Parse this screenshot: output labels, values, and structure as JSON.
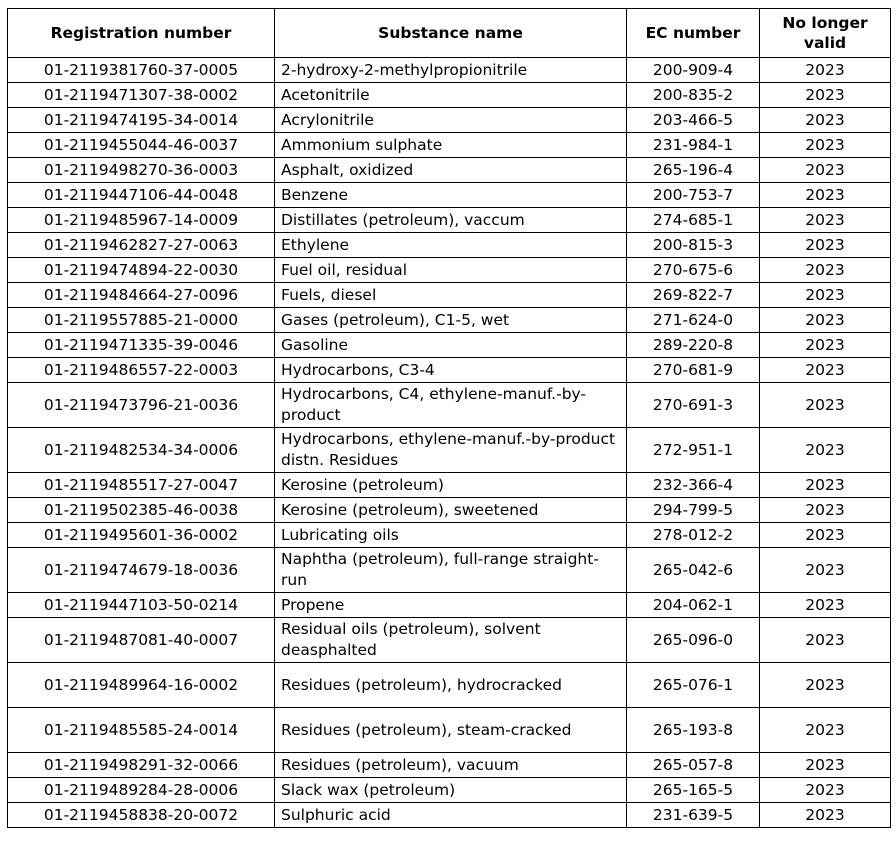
{
  "table": {
    "headers": [
      "Registration number",
      "Substance name",
      "EC number",
      "No longer valid"
    ],
    "rows": [
      {
        "reg": "01-2119381760-37-0005",
        "name": "2-hydroxy-2-methylpropionitrile",
        "ec": "200-909-4",
        "year": "2023"
      },
      {
        "reg": "01-2119471307-38-0002",
        "name": "Acetonitrile",
        "ec": "200-835-2",
        "year": "2023"
      },
      {
        "reg": "01-2119474195-34-0014",
        "name": "Acrylonitrile",
        "ec": "203-466-5",
        "year": "2023"
      },
      {
        "reg": "01-2119455044-46-0037",
        "name": "Ammonium sulphate",
        "ec": "231-984-1",
        "year": "2023"
      },
      {
        "reg": "01-2119498270-36-0003",
        "name": "Asphalt, oxidized",
        "ec": "265-196-4",
        "year": "2023"
      },
      {
        "reg": "01-2119447106-44-0048",
        "name": "Benzene",
        "ec": "200-753-7",
        "year": "2023"
      },
      {
        "reg": "01-2119485967-14-0009",
        "name": "Distillates (petroleum), vaccum",
        "ec": "274-685-1",
        "year": "2023"
      },
      {
        "reg": "01-2119462827-27-0063",
        "name": "Ethylene",
        "ec": "200-815-3",
        "year": "2023"
      },
      {
        "reg": "01-2119474894-22-0030",
        "name": "Fuel oil, residual",
        "ec": "270-675-6",
        "year": "2023"
      },
      {
        "reg": "01-2119484664-27-0096",
        "name": "Fuels, diesel",
        "ec": "269-822-7",
        "year": "2023"
      },
      {
        "reg": "01-2119557885-21-0000",
        "name": "Gases (petroleum), C1-5, wet",
        "ec": "271-624-0",
        "year": "2023"
      },
      {
        "reg": "01-2119471335-39-0046",
        "name": "Gasoline",
        "ec": "289-220-8",
        "year": "2023"
      },
      {
        "reg": "01-2119486557-22-0003",
        "name": "Hydrocarbons, C3-4",
        "ec": "270-681-9",
        "year": "2023"
      },
      {
        "reg": "01-2119473796-21-0036",
        "name": "Hydrocarbons, C4, ethylene-manuf.-by-product",
        "ec": "270-691-3",
        "year": "2023"
      },
      {
        "reg": "01-2119482534-34-0006",
        "name": "Hydrocarbons, ethylene-manuf.-by-product distn. Residues",
        "ec": "272-951-1",
        "year": "2023"
      },
      {
        "reg": "01-2119485517-27-0047",
        "name": "Kerosine (petroleum)",
        "ec": "232-366-4",
        "year": "2023"
      },
      {
        "reg": "01-2119502385-46-0038",
        "name": "Kerosine (petroleum), sweetened",
        "ec": "294-799-5",
        "year": "2023"
      },
      {
        "reg": "01-2119495601-36-0002",
        "name": "Lubricating oils",
        "ec": "278-012-2",
        "year": "2023"
      },
      {
        "reg": "01-2119474679-18-0036",
        "name": "Naphtha (petroleum), full-range straight-run",
        "ec": "265-042-6",
        "year": "2023"
      },
      {
        "reg": "01-2119447103-50-0214",
        "name": "Propene",
        "ec": "204-062-1",
        "year": "2023"
      },
      {
        "reg": "01-2119487081-40-0007",
        "name": "Residual oils (petroleum), solvent deasphalted",
        "ec": "265-096-0",
        "year": "2023"
      },
      {
        "reg": "01-2119489964-16-0002",
        "name": "Residues (petroleum), hydrocracked",
        "ec": "265-076-1",
        "year": "2023"
      },
      {
        "reg": "01-2119485585-24-0014",
        "name": "Residues (petroleum), steam-cracked",
        "ec": "265-193-8",
        "year": "2023"
      },
      {
        "reg": "01-2119498291-32-0066",
        "name": "Residues (petroleum), vacuum",
        "ec": "265-057-8",
        "year": "2023"
      },
      {
        "reg": "01-2119489284-28-0006",
        "name": "Slack wax (petroleum)",
        "ec": "265-165-5",
        "year": "2023"
      },
      {
        "reg": "01-2119458838-20-0072",
        "name": "Sulphuric acid",
        "ec": "231-639-5",
        "year": "2023"
      }
    ]
  }
}
